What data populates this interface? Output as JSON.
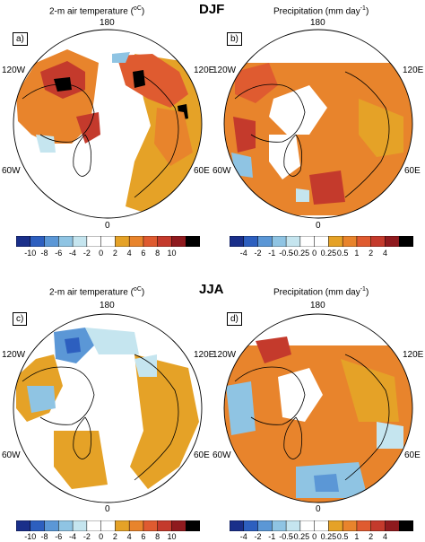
{
  "sections": [
    {
      "season": "DJF",
      "panels": [
        {
          "letter": "a)",
          "title_prefix": "2-m air temperature (",
          "title_unit": "oC",
          "title_suffix": ")",
          "lon_top": "180",
          "lon_left": "120W",
          "lon_right": "120E",
          "lon_lower_left": "60W",
          "lon_lower_right": "60E",
          "lon_bottom": "0"
        },
        {
          "letter": "b)",
          "title_prefix": "Precipitation (mm day",
          "title_unit": "-1",
          "title_suffix": ")",
          "lon_top": "180",
          "lon_left": "120W",
          "lon_right": "120E",
          "lon_lower_left": "60W",
          "lon_lower_right": "60E",
          "lon_bottom": "0"
        }
      ]
    },
    {
      "season": "JJA",
      "panels": [
        {
          "letter": "c)",
          "title_prefix": "2-m air temperature (",
          "title_unit": "oC",
          "title_suffix": ")",
          "lon_top": "180",
          "lon_left": "120W",
          "lon_right": "120E",
          "lon_lower_left": "60W",
          "lon_lower_right": "60E",
          "lon_bottom": "0"
        },
        {
          "letter": "d)",
          "title_prefix": "Precipitation (mm day",
          "title_unit": "-1",
          "title_suffix": ")",
          "lon_top": "180",
          "lon_left": "120W",
          "lon_right": "120E",
          "lon_lower_left": "60W",
          "lon_lower_right": "60E",
          "lon_bottom": "0"
        }
      ]
    }
  ],
  "colorbars": {
    "temperature": {
      "ticks": [
        "-10",
        "-8",
        "-6",
        "-4",
        "-2",
        "0",
        "2",
        "4",
        "6",
        "8",
        "10"
      ],
      "colors": [
        "#1a2f8a",
        "#2d5fbf",
        "#5b97d6",
        "#8fc4e3",
        "#c5e5ef",
        "#ffffff",
        "#ffffff",
        "#e5a227",
        "#e8842c",
        "#df5b30",
        "#c43a2c",
        "#8f1a1e",
        "#000000"
      ]
    },
    "precipitation": {
      "ticks": [
        "-4",
        "-2",
        "-1",
        "-0.5",
        "-0.25",
        "0",
        "0.25",
        "0.5",
        "1",
        "2",
        "4"
      ],
      "colors": [
        "#1a2f8a",
        "#2d5fbf",
        "#5b97d6",
        "#8fc4e3",
        "#c5e5ef",
        "#ffffff",
        "#ffffff",
        "#e5a227",
        "#e8842c",
        "#df5b30",
        "#c43a2c",
        "#8f1a1e",
        "#000000"
      ]
    }
  },
  "legend_colors": {
    "land_outline": "#000000",
    "warm_light": "#e5a227",
    "warm_mid": "#e8842c",
    "warm_strong": "#df5b30",
    "warm_stronger": "#c43a2c",
    "warm_max": "#000000",
    "cool_light": "#c5e5ef",
    "cool_mid": "#8fc4e3",
    "cool_strong": "#5b97d6",
    "cool_max": "#1a2f8a"
  }
}
